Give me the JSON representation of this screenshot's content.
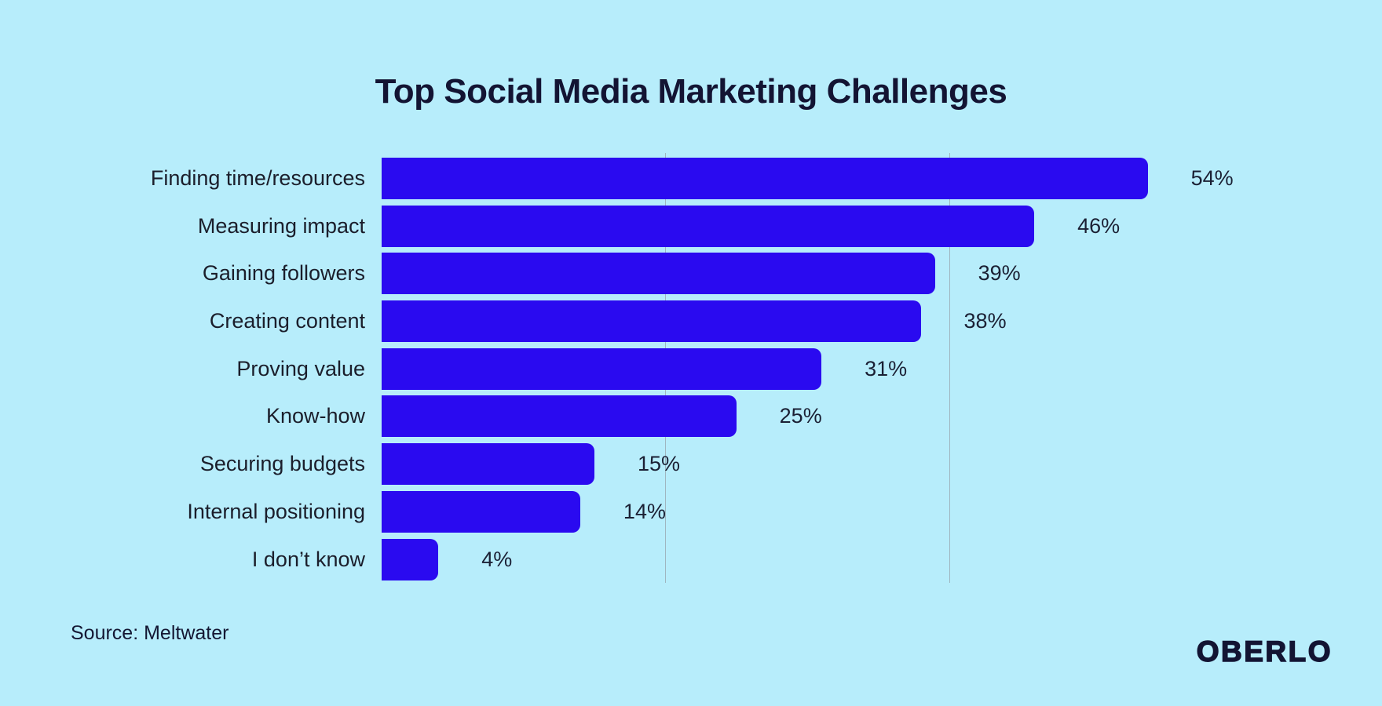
{
  "title": "Top Social Media Marketing Challenges",
  "source": "Source: Meltwater",
  "logo": "OBERLO",
  "colors": {
    "background": "#b7edfb",
    "bar": "#2a0af0",
    "title_text": "#131433",
    "label_text": "#1b1e2b",
    "gridline": "#9fb6c0"
  },
  "chart_data": {
    "type": "bar",
    "orientation": "horizontal",
    "title": "Top Social Media Marketing Challenges",
    "categories": [
      "Finding time/resources",
      "Measuring impact",
      "Gaining followers",
      "Creating content",
      "Proving value",
      "Know-how",
      "Securing budgets",
      "Internal positioning",
      "I don’t know"
    ],
    "values": [
      54,
      46,
      39,
      38,
      31,
      25,
      15,
      14,
      4
    ],
    "value_labels": [
      "54%",
      "46%",
      "39%",
      "38%",
      "31%",
      "25%",
      "15%",
      "14%",
      "4%"
    ],
    "xlabel": "",
    "ylabel": "",
    "xlim": [
      0,
      60
    ],
    "gridlines_at": [
      20,
      40
    ],
    "grid": true,
    "legend": false,
    "data_labels": "outside-end"
  }
}
